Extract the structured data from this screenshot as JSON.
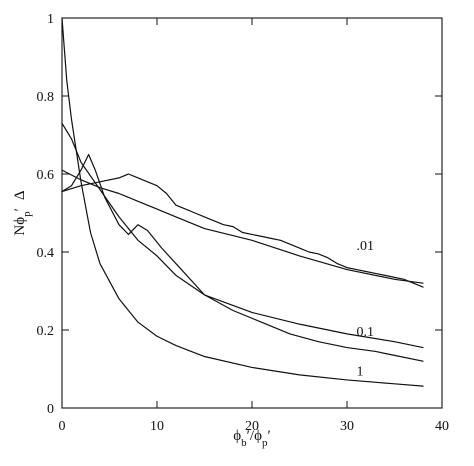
{
  "chart_data": {
    "type": "line",
    "x_label_main": "ϕ",
    "x_label_sub_main": "b",
    "x_label_prime_1": "′",
    "x_label_sep": "/",
    "x_label_denom": "ϕ",
    "x_label_sub_denom": "p",
    "x_label_prime_2": "′",
    "y_label_left": "Nϕ",
    "y_label_sub": "p",
    "y_label_prime": "′",
    "y_label_right": "Δ",
    "xlim": [
      0,
      40
    ],
    "ylim": [
      0,
      1
    ],
    "x_ticks": [
      0,
      10,
      20,
      30,
      40
    ],
    "y_ticks": [
      0,
      0.2,
      0.4,
      0.6,
      0.8,
      1
    ],
    "x_tick_labels": [
      "0",
      "10",
      "20",
      "30",
      "40"
    ],
    "y_tick_labels": [
      "0",
      "0.2",
      "0.4",
      "0.6",
      "0.8",
      "1"
    ],
    "curve_labels": [
      {
        "text": ".01",
        "x": 31.0,
        "y": 0.405
      },
      {
        "text": "0.1",
        "x": 31.0,
        "y": 0.185
      },
      {
        "text": "1",
        "x": 31.0,
        "y": 0.083
      }
    ],
    "series": [
      {
        "values": [
          [
            0,
            1.0
          ],
          [
            0.5,
            0.84
          ],
          [
            1,
            0.74
          ],
          [
            2,
            0.58
          ],
          [
            3,
            0.45
          ],
          [
            4,
            0.37
          ],
          [
            6,
            0.28
          ],
          [
            8,
            0.22
          ],
          [
            10,
            0.184
          ],
          [
            12,
            0.16
          ],
          [
            15,
            0.132
          ],
          [
            20,
            0.104
          ],
          [
            25,
            0.085
          ],
          [
            30,
            0.072
          ],
          [
            35,
            0.062
          ],
          [
            38,
            0.056
          ]
        ]
      },
      {
        "values": [
          [
            0,
            0.73
          ],
          [
            1,
            0.69
          ],
          [
            2,
            0.63
          ],
          [
            4,
            0.56
          ],
          [
            6,
            0.49
          ],
          [
            8,
            0.43
          ],
          [
            10,
            0.39
          ],
          [
            12,
            0.34
          ],
          [
            15,
            0.29
          ],
          [
            20,
            0.245
          ],
          [
            25,
            0.215
          ],
          [
            30,
            0.19
          ],
          [
            35,
            0.17
          ],
          [
            38,
            0.155
          ]
        ]
      },
      {
        "values": [
          [
            0,
            0.555
          ],
          [
            1,
            0.57
          ],
          [
            2,
            0.61
          ],
          [
            2.8,
            0.65
          ],
          [
            3.5,
            0.61
          ],
          [
            4.5,
            0.54
          ],
          [
            6,
            0.47
          ],
          [
            7,
            0.445
          ],
          [
            8,
            0.47
          ],
          [
            9,
            0.455
          ],
          [
            10.5,
            0.41
          ],
          [
            12,
            0.37
          ],
          [
            15,
            0.29
          ],
          [
            18,
            0.25
          ],
          [
            21,
            0.22
          ],
          [
            24,
            0.19
          ],
          [
            27,
            0.17
          ],
          [
            30,
            0.155
          ],
          [
            33,
            0.145
          ],
          [
            35,
            0.135
          ],
          [
            38,
            0.12
          ]
        ]
      },
      {
        "values": [
          [
            0,
            0.61
          ],
          [
            2,
            0.585
          ],
          [
            4,
            0.565
          ],
          [
            6,
            0.55
          ],
          [
            8,
            0.53
          ],
          [
            10,
            0.51
          ],
          [
            12,
            0.49
          ],
          [
            15,
            0.46
          ],
          [
            20,
            0.43
          ],
          [
            25,
            0.39
          ],
          [
            30,
            0.355
          ],
          [
            35,
            0.33
          ],
          [
            38,
            0.32
          ]
        ]
      },
      {
        "values": [
          [
            0,
            0.555
          ],
          [
            2,
            0.57
          ],
          [
            4,
            0.58
          ],
          [
            6,
            0.59
          ],
          [
            7,
            0.6
          ],
          [
            8,
            0.59
          ],
          [
            9,
            0.58
          ],
          [
            10,
            0.57
          ],
          [
            11,
            0.55
          ],
          [
            12,
            0.52
          ],
          [
            13,
            0.51
          ],
          [
            14,
            0.5
          ],
          [
            15,
            0.49
          ],
          [
            16,
            0.48
          ],
          [
            17,
            0.47
          ],
          [
            18,
            0.465
          ],
          [
            19,
            0.45
          ],
          [
            20,
            0.445
          ],
          [
            21,
            0.44
          ],
          [
            22,
            0.435
          ],
          [
            23,
            0.43
          ],
          [
            24,
            0.42
          ],
          [
            25,
            0.41
          ],
          [
            26,
            0.4
          ],
          [
            27,
            0.395
          ],
          [
            28,
            0.385
          ],
          [
            29,
            0.37
          ],
          [
            30,
            0.36
          ],
          [
            31,
            0.355
          ],
          [
            32,
            0.35
          ],
          [
            33,
            0.345
          ],
          [
            34,
            0.34
          ],
          [
            35,
            0.335
          ],
          [
            36,
            0.33
          ],
          [
            37,
            0.32
          ],
          [
            38,
            0.31
          ]
        ]
      }
    ]
  }
}
